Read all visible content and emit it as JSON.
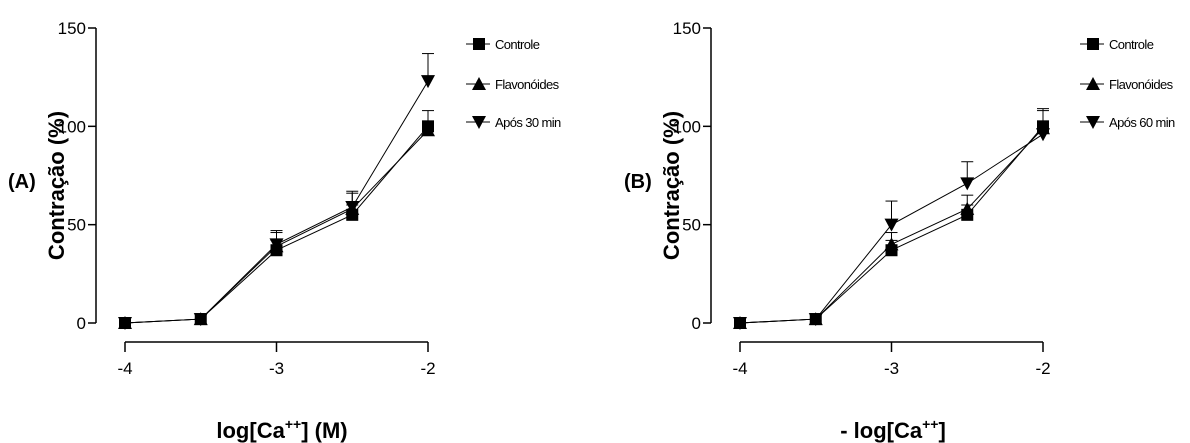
{
  "chart_data": [
    {
      "type": "line",
      "panel_label": "(A)",
      "xlabel_main": "log[Ca",
      "xlabel_sup": "++",
      "xlabel_tail": "] (M)",
      "ylabel": "Contração (%)",
      "xlim": [
        -4,
        -2
      ],
      "ylim": [
        0,
        150
      ],
      "x_ticks": [
        "-4",
        "-3",
        "-2"
      ],
      "y_ticks": [
        "0",
        "50",
        "100",
        "150"
      ],
      "x": [
        -4,
        -3.5,
        -3,
        -2.5,
        -2
      ],
      "legend_position": "right",
      "series": [
        {
          "name": "Controle",
          "marker": "square",
          "values": [
            0,
            2,
            37,
            55,
            100
          ],
          "errors": [
            0,
            0,
            5,
            5,
            8
          ]
        },
        {
          "name": "Flavonóides",
          "marker": "triangle-up",
          "values": [
            0,
            2,
            39,
            58,
            98
          ],
          "errors": [
            0,
            0,
            7,
            9,
            0
          ]
        },
        {
          "name": "Após 30 min",
          "marker": "triangle-down",
          "values": [
            0,
            2,
            40,
            59,
            123
          ],
          "errors": [
            0,
            0,
            7,
            7,
            14
          ]
        }
      ]
    },
    {
      "type": "line",
      "panel_label": "(B)",
      "xlabel_main": "- log[Ca",
      "xlabel_sup": "++",
      "xlabel_tail": "]",
      "ylabel": "Contração (%)",
      "xlim": [
        -4,
        -2
      ],
      "ylim": [
        0,
        150
      ],
      "x_ticks": [
        "-4",
        "-3",
        "-2"
      ],
      "y_ticks": [
        "0",
        "50",
        "100",
        "150"
      ],
      "x": [
        -4,
        -3.5,
        -3,
        -2.5,
        -2
      ],
      "legend_position": "right",
      "series": [
        {
          "name": "Controle",
          "marker": "square",
          "values": [
            0,
            2,
            37,
            55,
            100
          ],
          "errors": [
            0,
            0,
            5,
            5,
            8
          ]
        },
        {
          "name": "Flavonóides",
          "marker": "triangle-up",
          "values": [
            0,
            2,
            40,
            58,
            99
          ],
          "errors": [
            0,
            0,
            6,
            7,
            0
          ]
        },
        {
          "name": "Após 60 min",
          "marker": "triangle-down",
          "values": [
            0,
            2,
            50,
            71,
            96
          ],
          "errors": [
            0,
            0,
            12,
            11,
            13
          ]
        }
      ]
    }
  ]
}
